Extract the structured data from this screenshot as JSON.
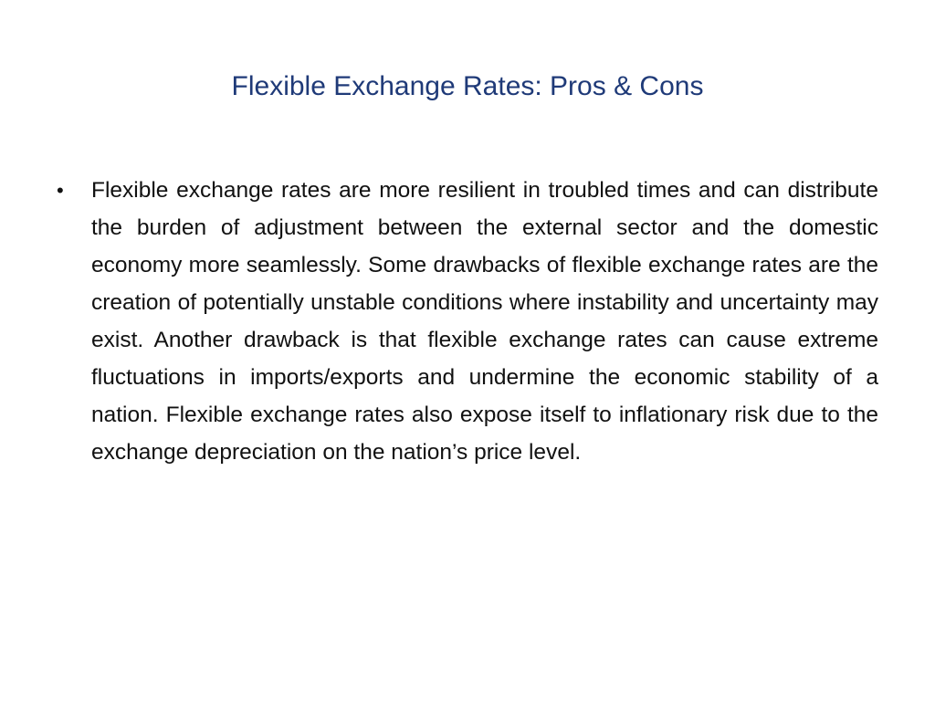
{
  "slide": {
    "title": "Flexible Exchange Rates: Pros & Cons",
    "bullets": [
      "Flexible exchange rates are more resilient in troubled times and can distribute the burden of adjustment between the external sector and the domestic economy more seamlessly. Some drawbacks of flexible exchange rates are the creation of potentially unstable conditions where instability and uncertainty may exist. Another drawback is that flexible exchange rates can cause extreme fluctuations in imports/exports and undermine the economic stability of a nation. Flexible exchange rates also expose itself to inflationary risk due to the exchange depreciation on the nation’s price level."
    ]
  }
}
